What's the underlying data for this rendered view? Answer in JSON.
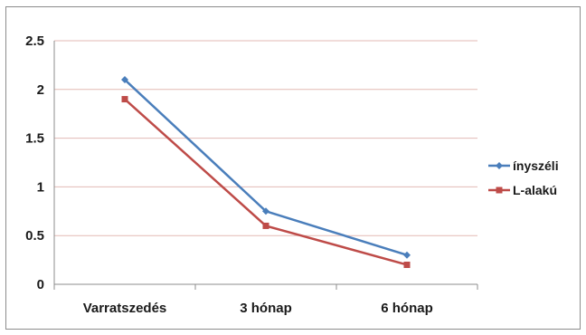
{
  "chart_data": {
    "type": "line",
    "categories": [
      "Varratszedés",
      "3 hónap",
      "6 hónap"
    ],
    "y_ticks": [
      "0",
      "0.5",
      "1",
      "1.5",
      "2",
      "2.5"
    ],
    "ylim": [
      0,
      2.5
    ],
    "grid": true,
    "legend_position": "right",
    "series": [
      {
        "name": "ínyszéli",
        "values": [
          2.1,
          0.75,
          0.3
        ],
        "color": "#4a7ebb"
      },
      {
        "name": "L-alakú",
        "values": [
          1.9,
          0.6,
          0.2
        ],
        "color": "#be4b48"
      }
    ]
  }
}
